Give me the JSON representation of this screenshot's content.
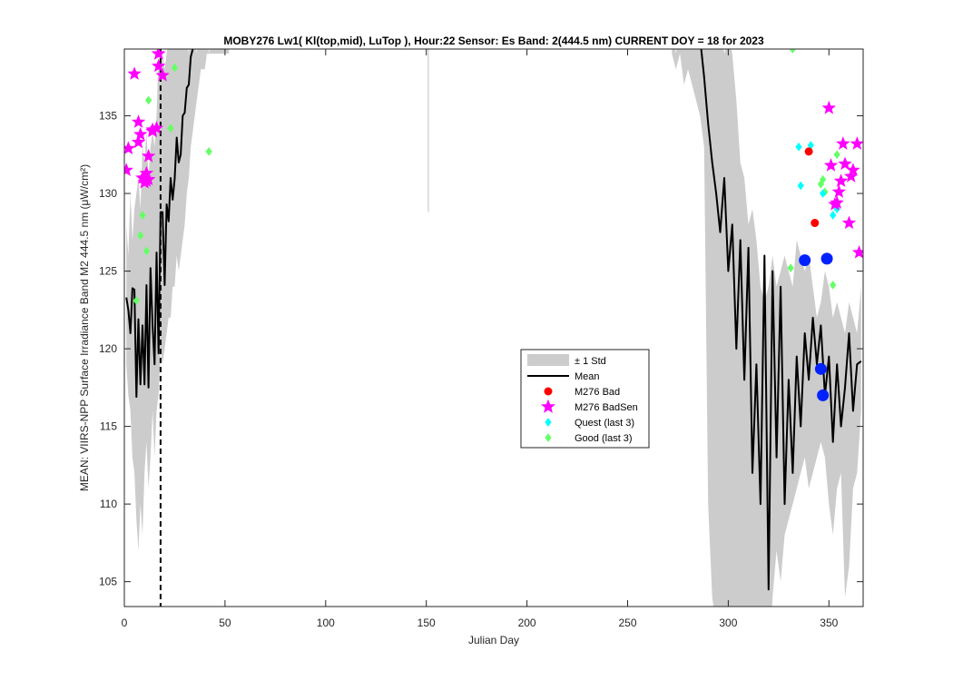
{
  "chart_data": {
    "type": "line",
    "title": "MOBY276   Lw1( Kl(top,mid), LuTop ),   Hour:22 Sensor: Es Band: 2(444.5 nm)   CURRENT DOY = 18 for 2023",
    "xlabel": "Julian Day",
    "ylabel": "MEAN: VIIRS-NPP Surface Irradiance Band M2 444.5 nm (μW/cm²)",
    "xlim": [
      0,
      367
    ],
    "ylim": [
      103.4,
      139.3
    ],
    "x_ticks": [
      0,
      50,
      100,
      150,
      200,
      250,
      300,
      350
    ],
    "x_tick_labels": [
      "0",
      "50",
      "100",
      "150",
      "200",
      "250",
      "300",
      "350"
    ],
    "y_ticks": [
      105,
      110,
      115,
      120,
      125,
      130,
      135
    ],
    "y_tick_labels": [
      "105",
      "110",
      "115",
      "120",
      "125",
      "130",
      "135"
    ],
    "grid": false,
    "legend_position": "center-right",
    "current_doy": 18,
    "colors": {
      "std_band": "#cccccc",
      "mean": "#000000",
      "bad": "#ff0000",
      "badsen": "#ff00ff",
      "quest": "#00ffff",
      "good": "#66ff66",
      "current": "#0022ff"
    },
    "legend": [
      {
        "key": "std",
        "label": "± 1 Std"
      },
      {
        "key": "mean",
        "label": "Mean"
      },
      {
        "key": "bad",
        "label": "M276 Bad"
      },
      {
        "key": "badsen",
        "label": "M276 BadSen"
      },
      {
        "key": "quest",
        "label": "Quest (last 3)"
      },
      {
        "key": "good",
        "label": "Good (last 3)"
      }
    ],
    "std_band": {
      "segments": [
        {
          "x": [
            1,
            2,
            3,
            4,
            5,
            6,
            7,
            8,
            9,
            10,
            11,
            12,
            13,
            14,
            15,
            16,
            17,
            18,
            19,
            20,
            21,
            22,
            23,
            24,
            25,
            26,
            27,
            28,
            29,
            30,
            31,
            32,
            33,
            34,
            35,
            36,
            37,
            38,
            39,
            40,
            41,
            42,
            43,
            44,
            45,
            46,
            47,
            48,
            49,
            50,
            51,
            52
          ],
          "upper": [
            128,
            126,
            130,
            127,
            129,
            130,
            131,
            129,
            133,
            132,
            134,
            131,
            133,
            134,
            133,
            135,
            139,
            137,
            139,
            138,
            139,
            140,
            141,
            142,
            140,
            143,
            142,
            141,
            143,
            142,
            140,
            139,
            141,
            142,
            140,
            139,
            141,
            140,
            142,
            140,
            141,
            139,
            140,
            142,
            143,
            141,
            142,
            143,
            142,
            141,
            140,
            140
          ],
          "lower": [
            119,
            117,
            116,
            113,
            112,
            109,
            107,
            110,
            108,
            112,
            114,
            111,
            113,
            116,
            113,
            116,
            117,
            120,
            119,
            120,
            121,
            122,
            122,
            124,
            124,
            126,
            125,
            126,
            127,
            128,
            130,
            131,
            133,
            134,
            135,
            136,
            137,
            138,
            138,
            138,
            139,
            139,
            139,
            139,
            139,
            139,
            139,
            139,
            139,
            139,
            139,
            139
          ]
        },
        {
          "x": [
            272,
            274,
            276,
            278,
            280,
            282,
            284,
            286,
            288,
            290,
            292,
            294,
            296,
            298,
            300,
            302,
            304,
            306,
            308,
            310,
            312,
            314,
            316,
            318,
            320,
            322,
            324,
            326,
            328,
            330,
            332,
            334,
            336,
            338,
            340,
            342,
            344,
            346,
            348,
            350,
            352,
            354,
            356,
            358,
            360,
            362,
            364,
            366
          ],
          "upper": [
            141,
            139,
            141,
            140,
            142,
            141,
            143,
            142,
            141,
            141,
            140,
            142,
            141,
            139,
            140,
            139,
            136,
            132,
            131,
            128,
            129,
            127,
            124,
            123,
            124,
            126,
            124,
            125,
            126,
            125,
            124,
            127,
            126,
            125,
            126,
            124,
            122,
            123,
            125,
            124,
            122,
            123,
            122,
            121,
            123,
            122,
            121,
            124
          ],
          "lower": [
            139,
            138,
            139,
            137,
            138,
            137,
            136,
            135,
            133,
            110,
            104,
            102,
            101,
            100,
            102,
            103,
            101,
            102,
            100,
            99,
            100,
            101,
            98,
            103,
            99,
            104,
            107,
            105,
            108,
            109,
            110,
            111,
            112,
            113,
            111,
            112,
            113,
            114,
            113,
            110,
            108,
            111,
            112,
            104,
            106,
            111,
            112,
            116
          ]
        }
      ],
      "spikes": [
        {
          "x": 151,
          "top": 139.3,
          "bottom": 128.8
        }
      ]
    },
    "series": [
      {
        "name": "Mean",
        "segments": [
          {
            "x": [
              1,
              2,
              3,
              4,
              5,
              6,
              7,
              8,
              9,
              10,
              11,
              12,
              13,
              14,
              15,
              16,
              17,
              18,
              19,
              20,
              21,
              22,
              23,
              24,
              25,
              26,
              27,
              28,
              29,
              30,
              31,
              32,
              33,
              34,
              35,
              36,
              37,
              38,
              39,
              40,
              41,
              42,
              43,
              44,
              45
            ],
            "y": [
              123.3,
              122.5,
              121.0,
              123.9,
              123.8,
              116.9,
              121.9,
              117.7,
              121.5,
              117.7,
              124.1,
              117.5,
              125.2,
              121.5,
              119.0,
              126.2,
              119.7,
              128.8,
              128.8,
              124.1,
              129.3,
              128.2,
              131.0,
              129.6,
              130.9,
              133.6,
              132.0,
              132.5,
              135.0,
              135.2,
              136.8,
              137.0,
              138.8,
              139.3,
              139.5,
              140.0,
              140.0,
              140.0,
              140.0,
              140.0,
              140.0,
              140.0,
              140.0,
              140.0,
              140.0
            ]
          },
          {
            "x": [
              286,
              288,
              290,
              292,
              294,
              296,
              298,
              300,
              302,
              304,
              306,
              308,
              310,
              312,
              314,
              316,
              318,
              320,
              322,
              324,
              326,
              328,
              330,
              332,
              334,
              336,
              338,
              340,
              342,
              344,
              346,
              348,
              350,
              352,
              354,
              356,
              358,
              360,
              362,
              364,
              366
            ],
            "y": [
              140.0,
              137.5,
              134.5,
              132.0,
              130.0,
              127.5,
              131.0,
              125.0,
              128.0,
              120.0,
              127.0,
              118.0,
              126.5,
              112.0,
              119.0,
              110.0,
              126.0,
              104.5,
              125.0,
              113.0,
              124.0,
              110.0,
              118.0,
              112.0,
              119.5,
              115.0,
              121.0,
              118.0,
              122.0,
              119.0,
              121.5,
              117.0,
              119.5,
              114.0,
              119.0,
              115.0,
              117.5,
              121.0,
              116.0,
              119.0,
              119.2
            ]
          }
        ]
      },
      {
        "name": "M276 Bad",
        "x": [
          340,
          343
        ],
        "y": [
          132.7,
          128.1
        ]
      },
      {
        "name": "M276 BadSen",
        "x": [
          1,
          2,
          5,
          7,
          7,
          8,
          9,
          10,
          10,
          11,
          11,
          12,
          12,
          14,
          14,
          16,
          17,
          19,
          350,
          351,
          353,
          354,
          355,
          356,
          357,
          358,
          360,
          361,
          362,
          364,
          365
        ],
        "y": [
          131.5,
          132.9,
          137.7,
          134.6,
          133.3,
          133.8,
          131.0,
          131.0,
          130.7,
          131.3,
          130.8,
          130.9,
          132.4,
          134.0,
          134.1,
          134.2,
          138.2,
          137.6,
          135.5,
          131.8,
          129.3,
          129.4,
          130.1,
          130.8,
          133.2,
          131.9,
          128.1,
          131.1,
          131.5,
          133.2,
          126.2
        ],
        "current": {
          "x": [
            17
          ],
          "y": [
            139.0
          ]
        }
      },
      {
        "name": "Quest (last 3)",
        "x": [
          335,
          336,
          341,
          347,
          352,
          354
        ],
        "y": [
          133.0,
          130.5,
          133.1,
          130.0,
          128.6,
          129.0
        ]
      },
      {
        "name": "Good (last 3)",
        "x": [
          6,
          8,
          9,
          11,
          12,
          23,
          25,
          42,
          331,
          332,
          346,
          347,
          348,
          352,
          354
        ],
        "y": [
          123.1,
          127.3,
          128.6,
          126.3,
          136.0,
          134.2,
          138.1,
          132.7,
          125.2,
          139.3,
          130.6,
          130.9,
          130.1,
          124.1,
          132.5
        ]
      },
      {
        "name": "Current (blue)",
        "x": [
          338,
          349,
          346,
          347
        ],
        "y": [
          125.7,
          125.8,
          118.7,
          117.0
        ]
      }
    ]
  }
}
